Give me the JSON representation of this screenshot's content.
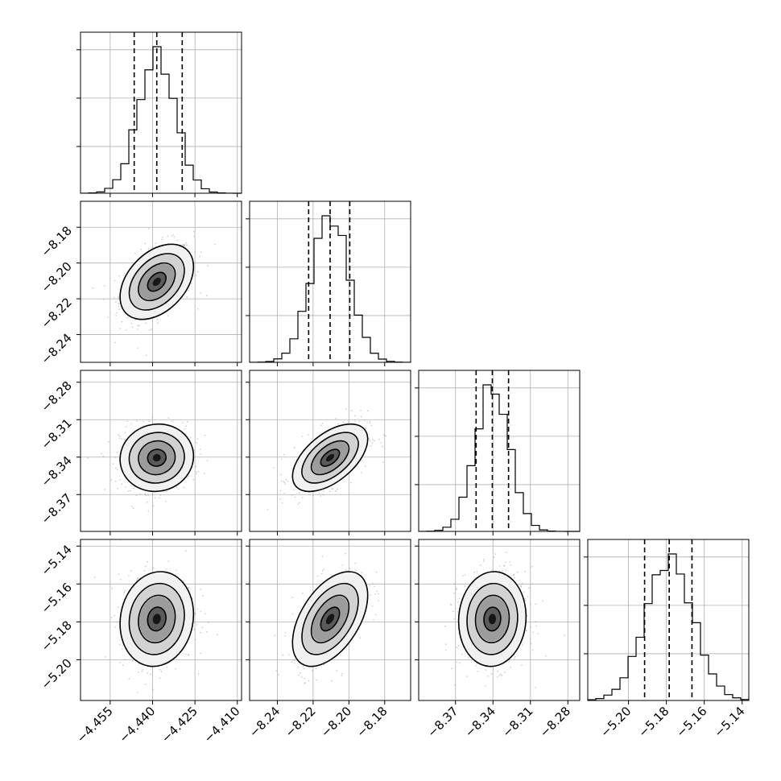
{
  "chart_data": {
    "type": "corner",
    "parameters": [
      {
        "mean": -4.4385,
        "sd": 0.0065,
        "range": [
          -4.4655,
          -4.4085
        ],
        "ticks": [
          -4.455,
          -4.44,
          -4.425,
          -4.41
        ],
        "tick_labels": [
          "−4.455",
          "−4.440",
          "−4.425",
          "−4.410"
        ],
        "quantiles": [
          -4.4465,
          -4.4385,
          -4.4295
        ]
      },
      {
        "mean": -8.2105,
        "sd": 0.0105,
        "range": [
          -8.2555,
          -8.1655
        ],
        "ticks": [
          -8.24,
          -8.22,
          -8.2,
          -8.18
        ],
        "tick_labels": [
          "−8.24",
          "−8.22",
          "−8.20",
          "−8.18"
        ],
        "quantiles": [
          -8.2225,
          -8.2105,
          -8.1995
        ]
      },
      {
        "mean": -8.3405,
        "sd": 0.0135,
        "range": [
          -8.3995,
          -8.2705
        ],
        "ticks": [
          -8.37,
          -8.34,
          -8.31,
          -8.28
        ],
        "tick_labels": [
          "−8.37",
          "−8.34",
          "−8.31",
          "−8.28"
        ],
        "quantiles": [
          -8.3535,
          -8.3405,
          -8.3275
        ]
      },
      {
        "mean": -5.1785,
        "sd": 0.0125,
        "range": [
          -5.2215,
          -5.1365
        ],
        "ticks": [
          -5.2,
          -5.18,
          -5.16,
          -5.14
        ],
        "tick_labels": [
          "−5.20",
          "−5.18",
          "−5.16",
          "−5.14"
        ],
        "quantiles": [
          -5.1915,
          -5.1785,
          -5.1665
        ]
      }
    ],
    "correlations": [
      [
        1,
        0.4,
        0.05,
        0.1
      ],
      [
        0.4,
        1,
        0.55,
        0.5
      ],
      [
        0.05,
        0.55,
        1,
        0.05
      ],
      [
        0.1,
        0.5,
        0.05,
        1
      ]
    ],
    "contour_levels_sigma": [
      0.5,
      1.0,
      1.5,
      2.0
    ],
    "hist_bins": 20,
    "grid": true,
    "colors": {
      "line": "#000000",
      "grid": "#b0b0b0",
      "points": "#9a9a9a"
    }
  }
}
